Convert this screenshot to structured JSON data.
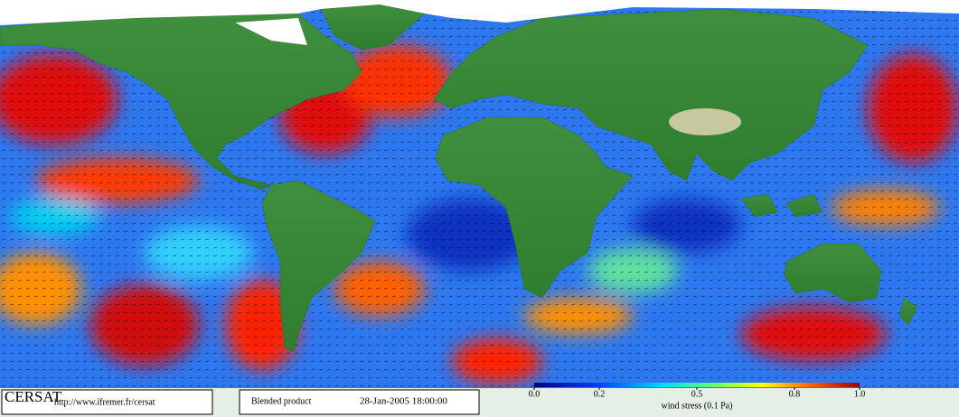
{
  "footer": {
    "logo": "CERSAT",
    "url": "http://www.ifremer.fr/cersat",
    "product": "Blended product",
    "timestamp": "28-Jan-2005 18:00:00"
  },
  "colorbar": {
    "label": "wind stress (0.1 Pa)",
    "ticks": [
      {
        "value": 0,
        "label": "0.0"
      },
      0.2,
      0.5,
      0.8,
      {
        "value": 1,
        "label": "1.0"
      }
    ]
  }
}
